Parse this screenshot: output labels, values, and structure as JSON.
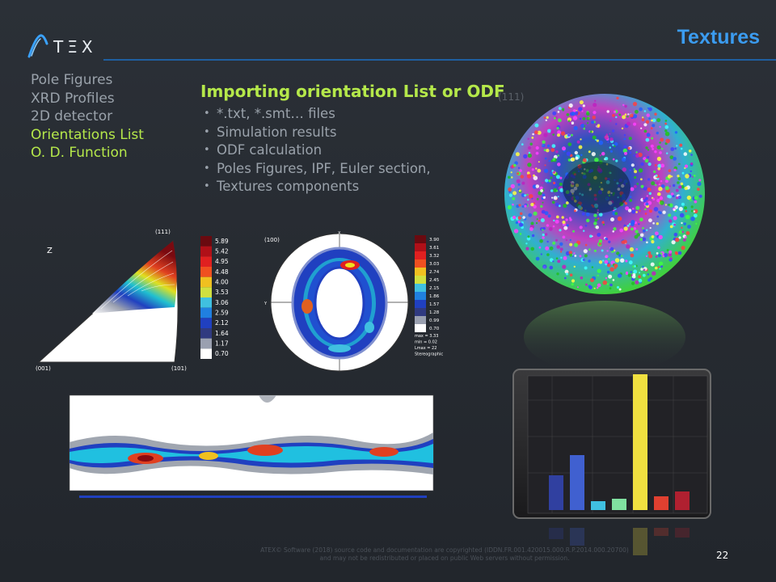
{
  "header": {
    "logo_text": "TΞX",
    "title": "Textures"
  },
  "nav": {
    "items": [
      {
        "label": "Pole Figures",
        "active": false
      },
      {
        "label": "XRD Profiles",
        "active": false
      },
      {
        "label": "2D detector",
        "active": false
      },
      {
        "label": "Orientations List",
        "active": true
      },
      {
        "label": "O. D. Function",
        "active": true
      }
    ]
  },
  "main": {
    "heading": "Importing orientation List or ODF",
    "heading_ghost": "(111)",
    "bullets": [
      "*.txt, *.smt… files",
      "Simulation results",
      "ODF calculation",
      "Poles Figures, IPF, Euler section,",
      "Textures components"
    ]
  },
  "ipf": {
    "z_label": "Z",
    "corner_111": "(111)",
    "corner_001": "(001)",
    "corner_101": "(101)",
    "scale": [
      "5.89",
      "5.42",
      "4.95",
      "4.48",
      "4.00",
      "3.53",
      "3.06",
      "2.59",
      "2.12",
      "1.64",
      "1.17",
      "0.70"
    ]
  },
  "pole_figure": {
    "label": "(100)",
    "x_label": "X",
    "y_label": "Y",
    "scale": [
      "3.90",
      "3.61",
      "3.32",
      "3.03",
      "2.74",
      "2.45",
      "2.15",
      "1.86",
      "1.57",
      "1.28",
      "0.99",
      "0.70"
    ],
    "stats": [
      "max = 3.33",
      "min = 0.02",
      "Lmax = 22",
      "Stereographic"
    ]
  },
  "footer": {
    "line1": "ATEX© Software (2018) source code and documentation are copyrighted (IDDN.FR.001.420015.000.R.P.2014.000.20700)",
    "line2": "and may not be redistributed or placed on public Web servers without permission.",
    "page_number": "22"
  },
  "colors": {
    "accent": "#3b9cf0",
    "active": "#b5e84a",
    "muted": "#9aa2ab"
  }
}
